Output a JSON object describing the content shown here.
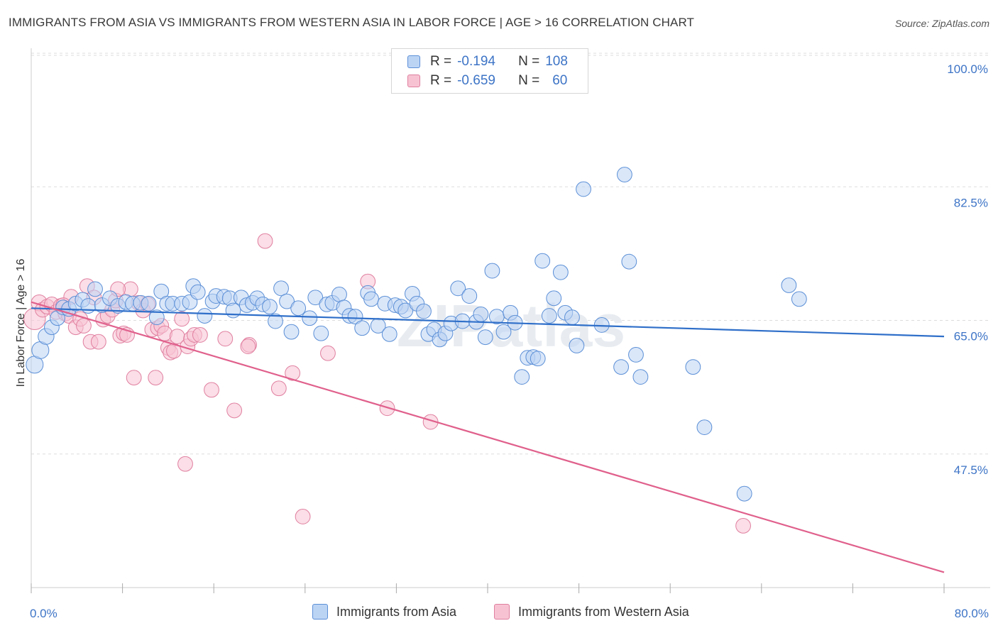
{
  "title": "IMMIGRANTS FROM ASIA VS IMMIGRANTS FROM WESTERN ASIA IN LABOR FORCE | AGE > 16 CORRELATION CHART",
  "source": "Source: ZipAtlas.com",
  "watermark": "ZIPatlas",
  "stats": {
    "r_label": "R =",
    "n_label": "N =",
    "series1": {
      "r": "-0.194",
      "n": "108"
    },
    "series2": {
      "r": "-0.659",
      "n": "60"
    }
  },
  "colors": {
    "series1_fill": "#bcd4f4",
    "series1_stroke": "#5b8fd6",
    "series1_line": "#2f6fc9",
    "series2_fill": "#f7c3d3",
    "series2_stroke": "#e07f9f",
    "series2_line": "#e0608c",
    "tick_text": "#3d74c6",
    "grid": "#dddddd"
  },
  "chart_data": {
    "type": "scatter",
    "title": "IMMIGRANTS FROM ASIA VS IMMIGRANTS FROM WESTERN ASIA IN LABOR FORCE | AGE > 16 CORRELATION CHART",
    "xlabel": "",
    "ylabel": "In Labor Force | Age > 16",
    "xlim": [
      0,
      80
    ],
    "ylim": [
      30,
      100
    ],
    "x_tick_labels": [
      "0.0%",
      "80.0%"
    ],
    "y_ticks": [
      {
        "value": 100,
        "label": "100.0%"
      },
      {
        "value": 82.5,
        "label": "82.5%"
      },
      {
        "value": 65,
        "label": "65.0%"
      },
      {
        "value": 47.5,
        "label": "47.5%"
      }
    ],
    "grid": true,
    "legend_position": "bottom-center",
    "series": [
      {
        "name": "Immigrants from Asia",
        "r": -0.194,
        "n": 108,
        "trend": {
          "x": [
            0,
            80
          ],
          "y": [
            66.6,
            62.9
          ]
        },
        "points": [
          [
            0.3,
            59.2,
            0.5
          ],
          [
            0.8,
            61.1,
            0.5
          ],
          [
            1.3,
            62.9,
            0.4
          ],
          [
            1.8,
            64.1,
            0.3
          ],
          [
            2.3,
            65.3,
            0.3
          ],
          [
            2.8,
            66.7,
            0.3
          ],
          [
            3.3,
            66.5,
            0.3
          ],
          [
            3.9,
            67.2,
            0.3
          ],
          [
            4.5,
            67.7,
            0.3
          ],
          [
            5.0,
            66.9,
            0.3
          ],
          [
            5.6,
            69.1,
            0.3
          ],
          [
            6.2,
            67.0,
            0.3
          ],
          [
            6.9,
            67.9,
            0.3
          ],
          [
            7.6,
            66.9,
            0.3
          ],
          [
            8.3,
            67.4,
            0.3
          ],
          [
            8.9,
            67.2,
            0.3
          ],
          [
            9.6,
            67.3,
            0.3
          ],
          [
            10.3,
            67.2,
            0.3
          ],
          [
            11.0,
            65.4,
            0.3
          ],
          [
            11.4,
            68.8,
            0.3
          ],
          [
            11.9,
            67.2,
            0.3
          ],
          [
            12.4,
            67.2,
            0.3
          ],
          [
            13.2,
            67.2,
            0.3
          ],
          [
            13.9,
            67.4,
            0.3
          ],
          [
            14.2,
            69.5,
            0.3
          ],
          [
            14.6,
            68.7,
            0.3
          ],
          [
            15.2,
            65.6,
            0.3
          ],
          [
            15.9,
            67.5,
            0.3
          ],
          [
            16.2,
            68.2,
            0.3
          ],
          [
            16.9,
            68.1,
            0.3
          ],
          [
            17.4,
            67.9,
            0.3
          ],
          [
            17.7,
            66.3,
            0.3
          ],
          [
            18.4,
            68.0,
            0.3
          ],
          [
            18.9,
            67.0,
            0.3
          ],
          [
            19.4,
            67.3,
            0.3
          ],
          [
            19.8,
            67.9,
            0.3
          ],
          [
            20.3,
            67.1,
            0.3
          ],
          [
            20.9,
            66.8,
            0.3
          ],
          [
            21.4,
            64.9,
            0.3
          ],
          [
            21.9,
            69.2,
            0.3
          ],
          [
            22.4,
            67.5,
            0.3
          ],
          [
            22.8,
            63.5,
            0.3
          ],
          [
            23.4,
            66.6,
            0.3
          ],
          [
            24.4,
            65.3,
            0.3
          ],
          [
            24.9,
            68.0,
            0.3
          ],
          [
            25.4,
            63.3,
            0.3
          ],
          [
            25.9,
            67.1,
            0.3
          ],
          [
            26.4,
            67.3,
            0.3
          ],
          [
            27.0,
            68.4,
            0.3
          ],
          [
            27.4,
            66.7,
            0.3
          ],
          [
            27.9,
            65.6,
            0.3
          ],
          [
            28.4,
            65.5,
            0.3
          ],
          [
            29.0,
            64.0,
            0.3
          ],
          [
            29.5,
            68.6,
            0.3
          ],
          [
            29.8,
            67.8,
            0.3
          ],
          [
            30.4,
            64.3,
            0.3
          ],
          [
            31.0,
            67.2,
            0.3
          ],
          [
            31.4,
            63.2,
            0.3
          ],
          [
            31.9,
            67.0,
            0.3
          ],
          [
            32.4,
            66.8,
            0.3
          ],
          [
            32.8,
            66.3,
            0.3
          ],
          [
            33.4,
            68.5,
            0.3
          ],
          [
            33.8,
            67.2,
            0.3
          ],
          [
            34.4,
            66.2,
            0.3
          ],
          [
            34.8,
            63.2,
            0.3
          ],
          [
            35.3,
            63.8,
            0.3
          ],
          [
            35.8,
            62.5,
            0.3
          ],
          [
            36.3,
            63.3,
            0.3
          ],
          [
            36.8,
            64.6,
            0.3
          ],
          [
            37.4,
            69.2,
            0.3
          ],
          [
            37.8,
            64.9,
            0.3
          ],
          [
            38.4,
            68.2,
            0.3
          ],
          [
            39.0,
            64.8,
            0.3
          ],
          [
            39.4,
            65.8,
            0.3
          ],
          [
            39.8,
            62.8,
            0.3
          ],
          [
            40.4,
            71.5,
            0.3
          ],
          [
            40.8,
            65.5,
            0.3
          ],
          [
            41.4,
            63.5,
            0.3
          ],
          [
            42.0,
            66.0,
            0.3
          ],
          [
            42.4,
            64.7,
            0.3
          ],
          [
            43.0,
            57.6,
            0.3
          ],
          [
            43.5,
            60.1,
            0.3
          ],
          [
            44.0,
            60.2,
            0.3
          ],
          [
            44.4,
            60.0,
            0.3
          ],
          [
            44.8,
            72.8,
            0.3
          ],
          [
            45.4,
            65.6,
            0.3
          ],
          [
            45.8,
            67.9,
            0.3
          ],
          [
            46.4,
            71.3,
            0.3
          ],
          [
            46.8,
            66.0,
            0.3
          ],
          [
            47.4,
            65.4,
            0.3
          ],
          [
            47.8,
            61.7,
            0.3
          ],
          [
            48.4,
            82.2,
            0.3
          ],
          [
            50.0,
            64.4,
            0.3
          ],
          [
            51.7,
            58.9,
            0.3
          ],
          [
            52.0,
            84.1,
            0.3
          ],
          [
            52.4,
            72.7,
            0.3
          ],
          [
            53.0,
            60.5,
            0.3
          ],
          [
            53.4,
            57.6,
            0.3
          ],
          [
            58.0,
            58.9,
            0.3
          ],
          [
            59.0,
            51.0,
            0.3
          ],
          [
            62.5,
            42.3,
            0.3
          ],
          [
            66.4,
            69.6,
            0.3
          ],
          [
            67.3,
            67.8,
            0.3
          ]
        ]
      },
      {
        "name": "Immigrants from Western Asia",
        "r": -0.659,
        "n": 60,
        "trend": {
          "x": [
            0,
            80
          ],
          "y": [
            67.4,
            32.0
          ]
        },
        "points": [
          [
            0.3,
            65.2,
            0.9
          ],
          [
            0.7,
            67.3,
            0.4
          ],
          [
            1.0,
            66.4,
            0.3
          ],
          [
            1.4,
            66.8,
            0.3
          ],
          [
            1.8,
            67.1,
            0.3
          ],
          [
            2.2,
            66.1,
            0.3
          ],
          [
            2.6,
            66.9,
            0.3
          ],
          [
            3.0,
            65.9,
            0.3
          ],
          [
            3.3,
            65.6,
            0.3
          ],
          [
            3.5,
            68.1,
            0.3
          ],
          [
            3.9,
            64.1,
            0.3
          ],
          [
            4.3,
            65.2,
            0.3
          ],
          [
            4.6,
            64.3,
            0.3
          ],
          [
            4.9,
            69.5,
            0.3
          ],
          [
            5.2,
            62.2,
            0.3
          ],
          [
            5.5,
            68.0,
            0.3
          ],
          [
            5.9,
            62.2,
            0.3
          ],
          [
            6.3,
            65.1,
            0.3
          ],
          [
            6.7,
            65.6,
            0.3
          ],
          [
            7.1,
            66.4,
            0.3
          ],
          [
            7.4,
            67.6,
            0.3
          ],
          [
            7.8,
            63.0,
            0.3
          ],
          [
            8.1,
            63.3,
            0.3
          ],
          [
            8.4,
            63.1,
            0.3
          ],
          [
            8.7,
            69.1,
            0.3
          ],
          [
            9.0,
            57.5,
            0.3
          ],
          [
            9.4,
            67.3,
            0.3
          ],
          [
            9.8,
            66.3,
            0.3
          ],
          [
            10.2,
            67.1,
            0.3
          ],
          [
            10.6,
            63.8,
            0.3
          ],
          [
            10.9,
            57.5,
            0.3
          ],
          [
            11.1,
            64.0,
            0.3
          ],
          [
            11.4,
            64.3,
            0.3
          ],
          [
            11.7,
            63.3,
            0.3
          ],
          [
            12.0,
            61.4,
            0.3
          ],
          [
            12.2,
            60.8,
            0.3
          ],
          [
            12.5,
            61.0,
            0.3
          ],
          [
            12.8,
            62.9,
            0.3
          ],
          [
            13.2,
            65.2,
            0.3
          ],
          [
            13.5,
            46.2,
            0.3
          ],
          [
            13.7,
            61.6,
            0.3
          ],
          [
            14.0,
            62.6,
            0.3
          ],
          [
            14.3,
            63.1,
            0.3
          ],
          [
            14.8,
            63.1,
            0.3
          ],
          [
            15.8,
            55.9,
            0.3
          ],
          [
            17.0,
            62.6,
            0.3
          ],
          [
            17.8,
            53.2,
            0.3
          ],
          [
            19.1,
            61.8,
            0.3
          ],
          [
            20.5,
            75.4,
            0.3
          ],
          [
            21.7,
            56.1,
            0.3
          ],
          [
            22.9,
            58.1,
            0.3
          ],
          [
            23.8,
            39.3,
            0.3
          ],
          [
            26.0,
            60.7,
            0.3
          ],
          [
            29.5,
            70.1,
            0.3
          ],
          [
            31.2,
            53.5,
            0.3
          ],
          [
            35.0,
            51.7,
            0.3
          ],
          [
            62.4,
            38.1,
            0.3
          ],
          [
            19.0,
            61.6,
            0.3
          ],
          [
            7.6,
            69.1,
            0.3
          ],
          [
            2.8,
            67.0,
            0.3
          ]
        ]
      }
    ]
  },
  "legend": {
    "series1": "Immigrants from Asia",
    "series2": "Immigrants from Western Asia"
  }
}
